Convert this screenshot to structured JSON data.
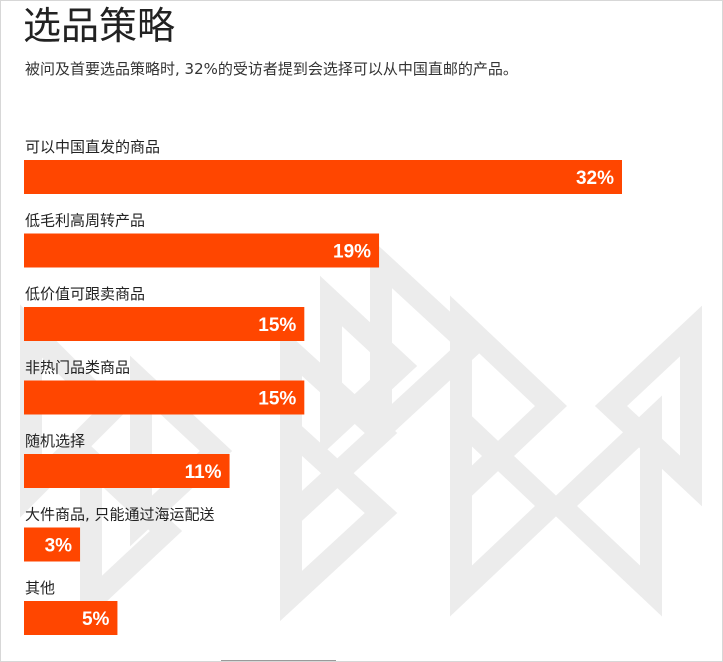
{
  "header": {
    "title": "选品策略",
    "subtitle": "被问及首要选品策略时, 32%的受访者提到会选择可以从中国直邮的产品。"
  },
  "colors": {
    "bar": "#ff4600",
    "bar_label": "#ffffff",
    "category_label": "#222222",
    "pattern": "#ececec"
  },
  "chart_data": {
    "type": "bar",
    "orientation": "horizontal",
    "title": "选品策略",
    "subtitle": "被问及首要选品策略时, 32%的受访者提到会选择可以从中国直邮的产品。",
    "categories": [
      "可以中国直发的商品",
      "低毛利高周转产品",
      "低价值可跟卖商品",
      "非热门品类商品",
      "随机选择",
      "大件商品, 只能通过海运配送",
      "其他"
    ],
    "values": [
      32,
      19,
      15,
      15,
      11,
      3,
      5
    ],
    "value_labels": [
      "32%",
      "19%",
      "15%",
      "15%",
      "11%",
      "3%",
      "5%"
    ],
    "unit": "%",
    "xlabel": "",
    "ylabel": "",
    "grid": false,
    "legend": "none"
  }
}
